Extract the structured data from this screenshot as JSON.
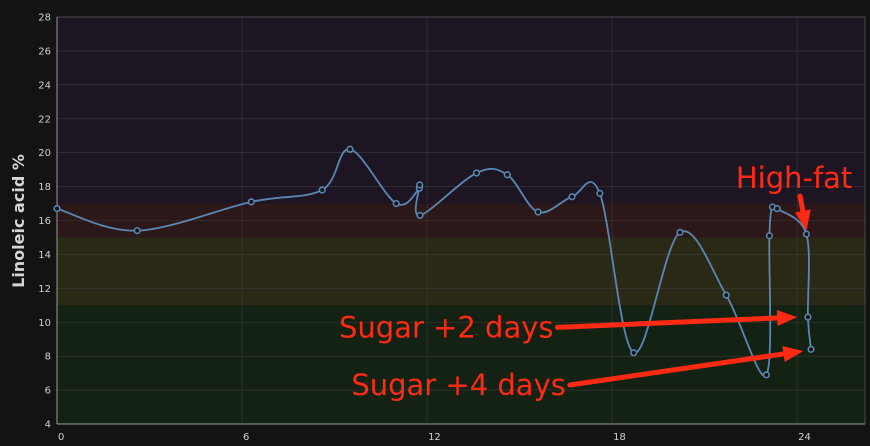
{
  "chart_data": {
    "type": "line",
    "ylabel": "Linoleic acid %",
    "xlabel": "",
    "title": "",
    "xlim": [
      0,
      26.2
    ],
    "ylim": [
      4,
      28
    ],
    "x_ticks": [
      0,
      6,
      12,
      18,
      24
    ],
    "y_ticks": [
      4,
      6,
      8,
      10,
      12,
      14,
      16,
      18,
      20,
      22,
      24,
      26,
      28
    ],
    "grid": true,
    "bands": [
      {
        "from": 4,
        "to": 11,
        "color": "#142214"
      },
      {
        "from": 11,
        "to": 15,
        "color": "#2a2916"
      },
      {
        "from": 15,
        "to": 17,
        "color": "#2c1818"
      },
      {
        "from": 17,
        "to": 28,
        "color": "#1d1622"
      }
    ],
    "series": [
      {
        "name": "",
        "color": "#5a86b4",
        "points": [
          [
            0.0,
            16.7
          ],
          [
            2.6,
            15.4
          ],
          [
            6.3,
            17.1
          ],
          [
            8.6,
            17.8
          ],
          [
            9.5,
            20.2
          ],
          [
            11.0,
            17.0
          ],
          [
            11.75,
            17.9
          ],
          [
            11.76,
            18.1
          ],
          [
            11.77,
            16.3
          ],
          [
            13.6,
            18.8
          ],
          [
            14.6,
            18.7
          ],
          [
            15.6,
            16.5
          ],
          [
            16.7,
            17.4
          ],
          [
            17.6,
            17.6
          ],
          [
            18.7,
            8.2
          ],
          [
            20.2,
            15.3
          ],
          [
            21.7,
            11.6
          ],
          [
            23.0,
            6.9
          ],
          [
            23.1,
            15.1
          ],
          [
            23.2,
            16.8
          ],
          [
            23.35,
            16.7
          ],
          [
            24.3,
            15.2
          ],
          [
            24.35,
            10.3
          ],
          [
            24.45,
            8.4
          ]
        ]
      }
    ],
    "annotations": [
      {
        "text": "High-fat",
        "x": 23.9,
        "y": 18.5,
        "arrow_to": [
          24.3,
          15.4
        ],
        "align": "middle"
      },
      {
        "text": "Sugar +2 days",
        "x": 16.1,
        "y": 9.7,
        "arrow_to": [
          24.0,
          10.3
        ],
        "align": "end"
      },
      {
        "text": "Sugar +4 days",
        "x": 16.5,
        "y": 6.3,
        "arrow_to": [
          24.2,
          8.3
        ],
        "align": "end"
      }
    ],
    "colors": {
      "background": "#131313",
      "grid": "#3a3a3a",
      "line": "#5a86b4",
      "annotation": "#ff2a14"
    }
  }
}
